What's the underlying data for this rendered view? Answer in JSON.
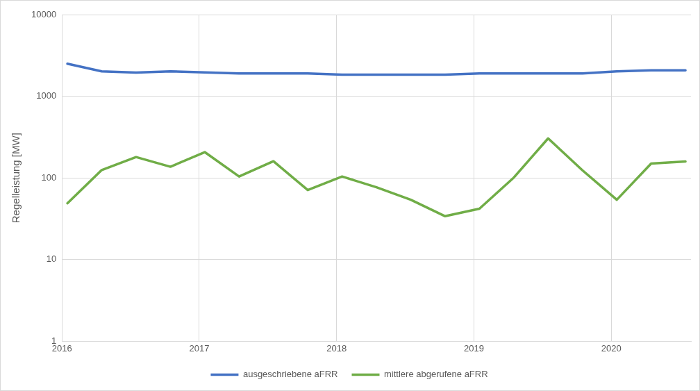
{
  "chart_data": {
    "type": "line",
    "ylabel": "Regelleistung [MW]",
    "log": "y",
    "grid": true,
    "legend": "bottom",
    "marker": "none",
    "line_style": "solid",
    "x": [
      2016.04,
      2016.29,
      2016.54,
      2016.79,
      2017.04,
      2017.29,
      2017.54,
      2017.79,
      2018.04,
      2018.29,
      2018.54,
      2018.79,
      2019.04,
      2019.29,
      2019.54,
      2019.79,
      2020.04,
      2020.29,
      2020.54
    ],
    "xlim": [
      2016,
      2020.58
    ],
    "xticks": [
      2016,
      2017,
      2018,
      2019,
      2020
    ],
    "ylim": [
      1,
      10000
    ],
    "yticks": [
      1,
      10,
      100,
      1000,
      10000
    ],
    "series": [
      {
        "name": "ausgeschriebene aFRR",
        "color": "#4472c4",
        "values": [
          2500,
          2020,
          1950,
          2020,
          1960,
          1900,
          1900,
          1900,
          1840,
          1840,
          1840,
          1840,
          1900,
          1900,
          1900,
          1900,
          2020,
          2080,
          2080
        ]
      },
      {
        "name": "mittlere abgerufene aFRR",
        "color": "#70ad47",
        "values": [
          49,
          125,
          180,
          137,
          207,
          104,
          160,
          71,
          104,
          77,
          54,
          34,
          42,
          101,
          305,
          124,
          54,
          150,
          159
        ]
      }
    ]
  }
}
